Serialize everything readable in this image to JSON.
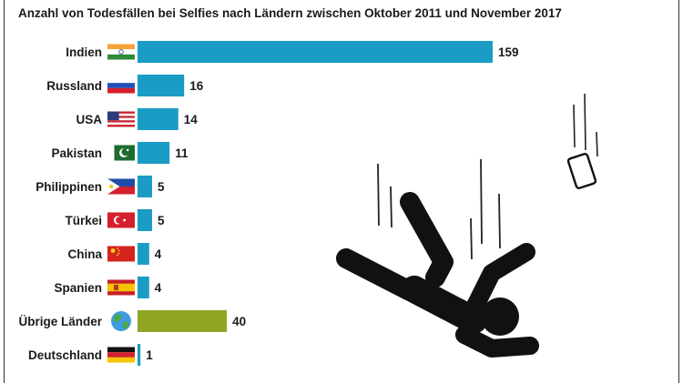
{
  "chart_data": {
    "type": "bar",
    "orientation": "horizontal",
    "title": "Anzahl von Todesfällen bei Selfies nach Ländern zwischen Oktober 2011 und November 2017",
    "xlabel": "",
    "ylabel": "",
    "xlim": [
      0,
      159
    ],
    "grid": false,
    "legend": "none",
    "categories": [
      "Indien",
      "Russland",
      "USA",
      "Pakistan",
      "Philippinen",
      "Türkei",
      "China",
      "Spanien",
      "Übrige Länder",
      "Deutschland"
    ],
    "values": [
      159,
      16,
      14,
      11,
      5,
      5,
      4,
      4,
      40,
      1
    ],
    "bar_colors": [
      "#1a9cc4",
      "#1a9cc4",
      "#1a9cc4",
      "#1a9cc4",
      "#1a9cc4",
      "#1a9cc4",
      "#1a9cc4",
      "#1a9cc4",
      "#8ea624",
      "#1a9cc4"
    ],
    "flag_icons": [
      "flag-india-icon",
      "flag-russia-icon",
      "flag-usa-icon",
      "flag-pakistan-icon",
      "flag-philippines-icon",
      "flag-turkey-icon",
      "flag-china-icon",
      "flag-spain-icon",
      "globe-icon",
      "flag-germany-icon"
    ]
  },
  "illustration": {
    "figure_icon": "falling-person-icon",
    "phone_icon": "falling-phone-icon"
  }
}
